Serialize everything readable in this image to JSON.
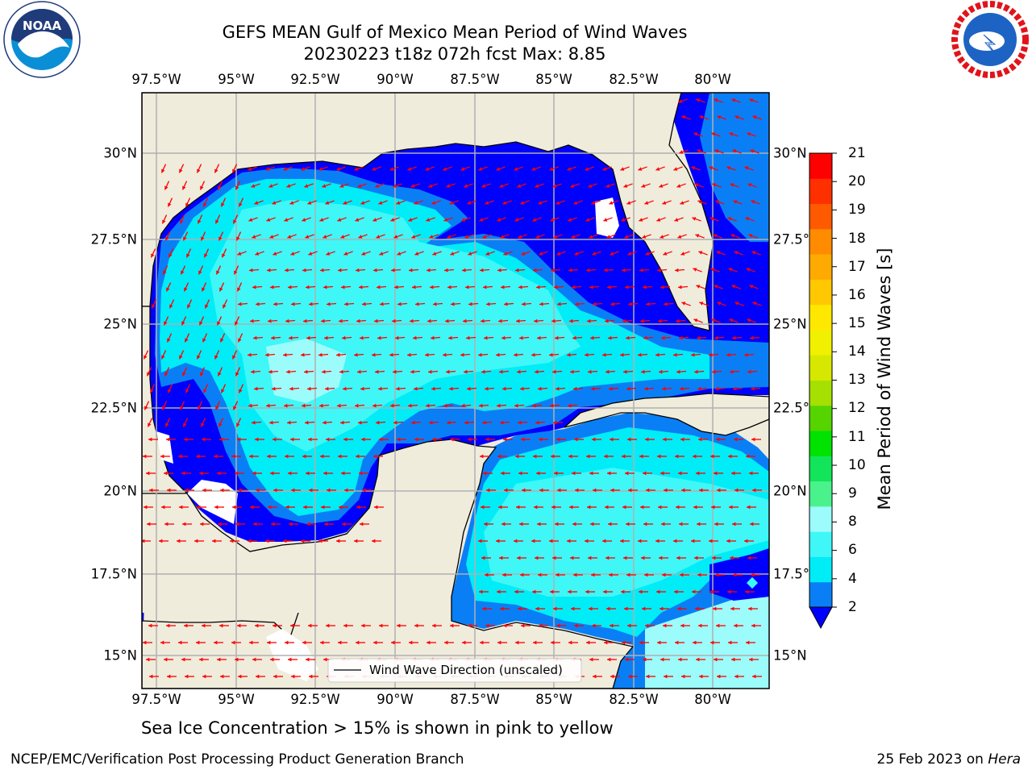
{
  "header": {
    "title_line1": "GEFS MEAN Gulf of Mexico Mean Period of Wind Waves",
    "title_line2": "20230223 t18z 072h fcst   Max: 8.85"
  },
  "logos": {
    "left": {
      "name": "NOAA",
      "ring_text": "NATIONAL OCEANIC AND ATMOSPHERIC ADMINISTRATION · U.S. DEPARTMENT OF COMMERCE",
      "colors": [
        "#1f3b7a",
        "#0a8fd6",
        "#ffffff"
      ]
    },
    "right": {
      "name": "NATIONAL WEATHER SERVICE",
      "colors": [
        "#e0141b",
        "#1d63c4",
        "#ffffff"
      ]
    }
  },
  "map": {
    "lon_ticks": [
      "97.5°W",
      "95°W",
      "92.5°W",
      "90°W",
      "87.5°W",
      "85°W",
      "82.5°W",
      "80°W"
    ],
    "lat_ticks_left": [
      "30°N",
      "27.5°N",
      "25°N",
      "22.5°N",
      "20°N",
      "17.5°N",
      "15°N"
    ],
    "lat_ticks_right": [
      "30°N",
      "27.5°",
      "25°N",
      "22.5°",
      "20°N",
      "17.5°",
      "15°N"
    ],
    "legend_label": "Wind Wave Direction (unscaled)",
    "land_color": "#efecdc",
    "arrow_color": "#ff0000"
  },
  "colorbar": {
    "label": "Mean Period of Wind Waves [s]",
    "ticks": [
      "21",
      "20",
      "19",
      "18",
      "17",
      "16",
      "15",
      "14",
      "13",
      "12",
      "11",
      "10",
      "9",
      "8",
      "6",
      "4",
      "2"
    ],
    "levels": [
      2,
      4,
      6,
      7,
      8,
      9,
      10,
      11,
      12,
      13,
      14,
      15,
      16,
      17,
      18,
      19,
      20,
      21
    ],
    "colors": [
      "#0a7ff5",
      "#00ecf7",
      "#3ff7f7",
      "#9cfcfc",
      "#4af28c",
      "#12e55a",
      "#00e200",
      "#55d400",
      "#a6e000",
      "#d6e800",
      "#f0f000",
      "#ffe800",
      "#ffc800",
      "#ffaa00",
      "#ff8c00",
      "#ff5a00",
      "#ff3000",
      "#ff0000"
    ],
    "under_color": "#0000ff"
  },
  "footer": {
    "note": "Sea Ice Concentration > 15% is shown in pink to yellow",
    "left": "NCEP/EMC/Verification Post Processing Product Generation Branch",
    "right_date": "25 Feb 2023 on ",
    "right_host": "Hera"
  }
}
